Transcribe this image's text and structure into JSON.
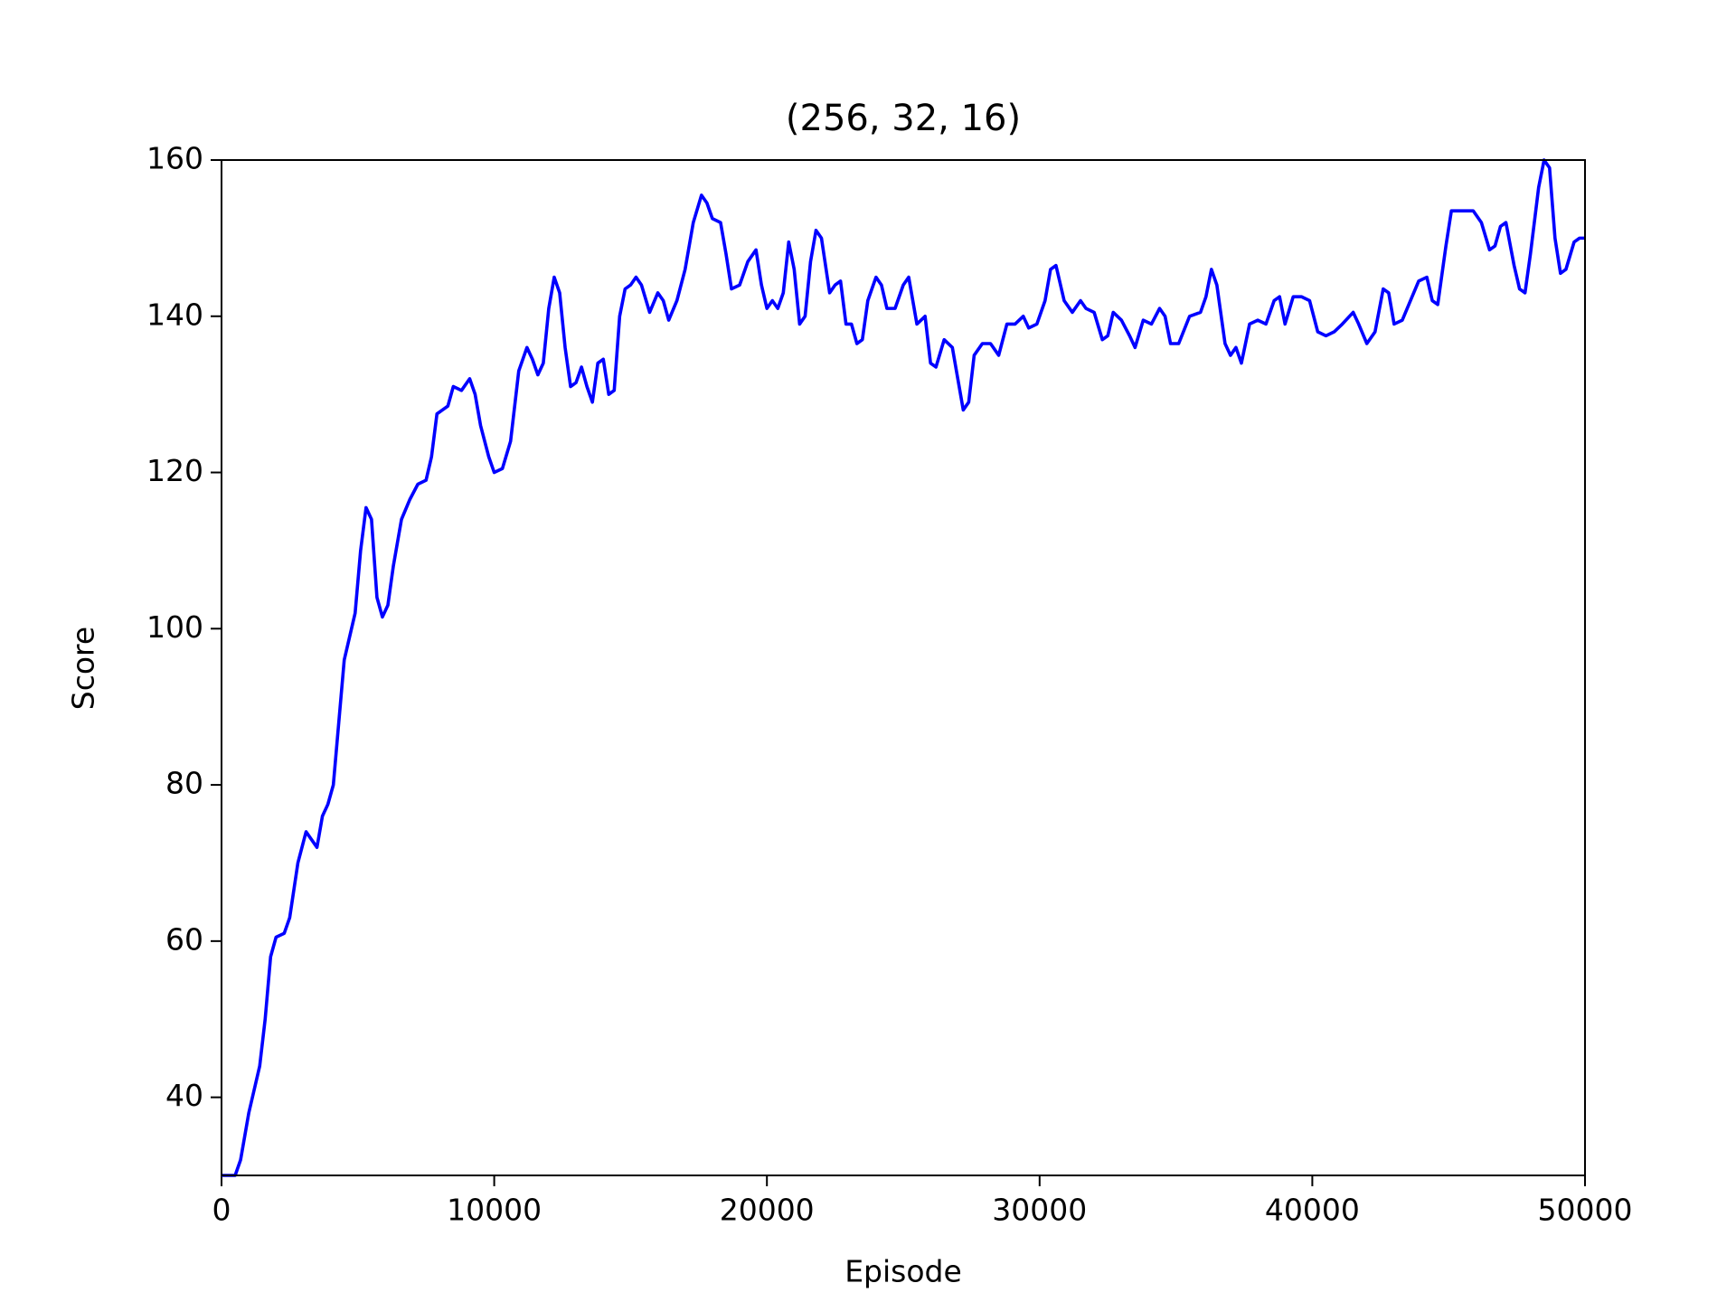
{
  "chart_data": {
    "type": "line",
    "title": "(256, 32, 16)",
    "x_label": "Episode",
    "y_label": "Score",
    "x": [
      0,
      500,
      700,
      1000,
      1200,
      1400,
      1600,
      1800,
      2000,
      2300,
      2500,
      2800,
      3100,
      3300,
      3500,
      3700,
      3900,
      4100,
      4300,
      4500,
      4700,
      4900,
      5100,
      5300,
      5500,
      5700,
      5900,
      6100,
      6300,
      6600,
      6900,
      7200,
      7500,
      7700,
      7900,
      8100,
      8300,
      8500,
      8800,
      9100,
      9300,
      9500,
      9800,
      10000,
      10300,
      10600,
      10900,
      11200,
      11400,
      11600,
      11800,
      12000,
      12200,
      12400,
      12600,
      12800,
      13000,
      13200,
      13400,
      13600,
      13800,
      14000,
      14200,
      14400,
      14600,
      14800,
      15000,
      15200,
      15400,
      15700,
      16000,
      16200,
      16400,
      16700,
      17000,
      17300,
      17600,
      17800,
      18000,
      18300,
      18500,
      18700,
      19000,
      19300,
      19600,
      19800,
      20000,
      20200,
      20400,
      20600,
      20800,
      21000,
      21200,
      21400,
      21600,
      21800,
      22000,
      22300,
      22500,
      22700,
      22900,
      23100,
      23300,
      23500,
      23700,
      24000,
      24200,
      24400,
      24700,
      25000,
      25200,
      25500,
      25800,
      26000,
      26200,
      26500,
      26800,
      27000,
      27200,
      27400,
      27600,
      27900,
      28200,
      28500,
      28800,
      29100,
      29400,
      29600,
      29900,
      30200,
      30400,
      30600,
      30900,
      31200,
      31500,
      31700,
      32000,
      32300,
      32500,
      32700,
      33000,
      33300,
      33500,
      33800,
      34100,
      34400,
      34600,
      34800,
      35100,
      35500,
      35900,
      36100,
      36300,
      36500,
      36800,
      37000,
      37200,
      37400,
      37700,
      38000,
      38300,
      38600,
      38800,
      39000,
      39300,
      39600,
      39900,
      40200,
      40500,
      40800,
      41100,
      41500,
      41700,
      42000,
      42300,
      42600,
      42800,
      43000,
      43300,
      43600,
      43900,
      44200,
      44400,
      44600,
      44900,
      45100,
      45300,
      45600,
      45900,
      46200,
      46500,
      46700,
      46900,
      47100,
      47400,
      47600,
      47800,
      48000,
      48300,
      48500,
      48700,
      48900,
      49100,
      49300,
      49600,
      49800,
      50000
    ],
    "series": [
      {
        "name": "Score",
        "color": "#0000ff",
        "values": [
          30,
          30,
          32,
          38,
          41,
          44,
          50,
          58,
          60.5,
          61,
          63,
          70,
          74,
          73,
          72,
          76,
          77.5,
          80,
          88,
          96,
          99,
          102,
          110,
          115.5,
          114,
          104,
          101.5,
          103,
          108,
          114,
          116.5,
          118.5,
          119,
          122,
          127.5,
          128,
          128.5,
          131,
          130.5,
          132,
          130,
          126,
          122,
          120,
          120.5,
          124,
          133,
          136,
          134.5,
          132.5,
          134,
          141,
          145,
          143,
          136,
          131,
          131.5,
          133.5,
          131,
          129,
          134,
          134.5,
          130,
          130.5,
          140,
          143.5,
          144,
          145,
          144,
          140.5,
          143,
          142,
          139.5,
          142,
          146,
          152,
          155.5,
          154.5,
          152.5,
          152,
          148,
          143.5,
          144,
          147,
          148.5,
          144,
          141,
          142,
          141,
          143,
          149.5,
          146,
          139,
          140,
          147,
          151,
          150,
          143,
          144,
          144.5,
          139,
          139,
          136.5,
          137,
          142,
          145,
          144,
          141,
          141,
          144,
          145,
          139,
          140,
          134,
          133.5,
          137,
          136,
          132,
          128,
          129,
          135,
          136.5,
          136.5,
          135,
          139,
          139,
          140,
          138.5,
          139,
          142,
          146,
          146.5,
          142,
          140.5,
          142,
          141,
          140.5,
          137,
          137.5,
          140.5,
          139.5,
          137.5,
          136,
          139.5,
          139,
          141,
          140,
          136.5,
          136.5,
          140,
          140.5,
          142.5,
          146,
          144,
          136.5,
          135,
          136,
          134,
          139,
          139.5,
          139,
          142,
          142.5,
          139,
          142.5,
          142.5,
          142,
          138,
          137.5,
          138,
          139,
          140.5,
          139,
          136.5,
          138,
          143.5,
          143,
          139,
          139.5,
          142,
          144.5,
          145,
          142,
          141.5,
          149,
          153.5,
          153.5,
          153.5,
          153.5,
          152,
          148.5,
          149,
          151.5,
          152,
          146.5,
          143.5,
          143,
          148,
          156.5,
          160,
          159,
          150,
          145.5,
          146,
          149.5,
          150,
          150
        ]
      }
    ],
    "xlim": [
      0,
      50000
    ],
    "ylim": [
      30,
      160
    ],
    "xticks": [
      0,
      10000,
      20000,
      30000,
      40000,
      50000
    ],
    "yticks": [
      40,
      60,
      80,
      100,
      120,
      140,
      160
    ]
  }
}
